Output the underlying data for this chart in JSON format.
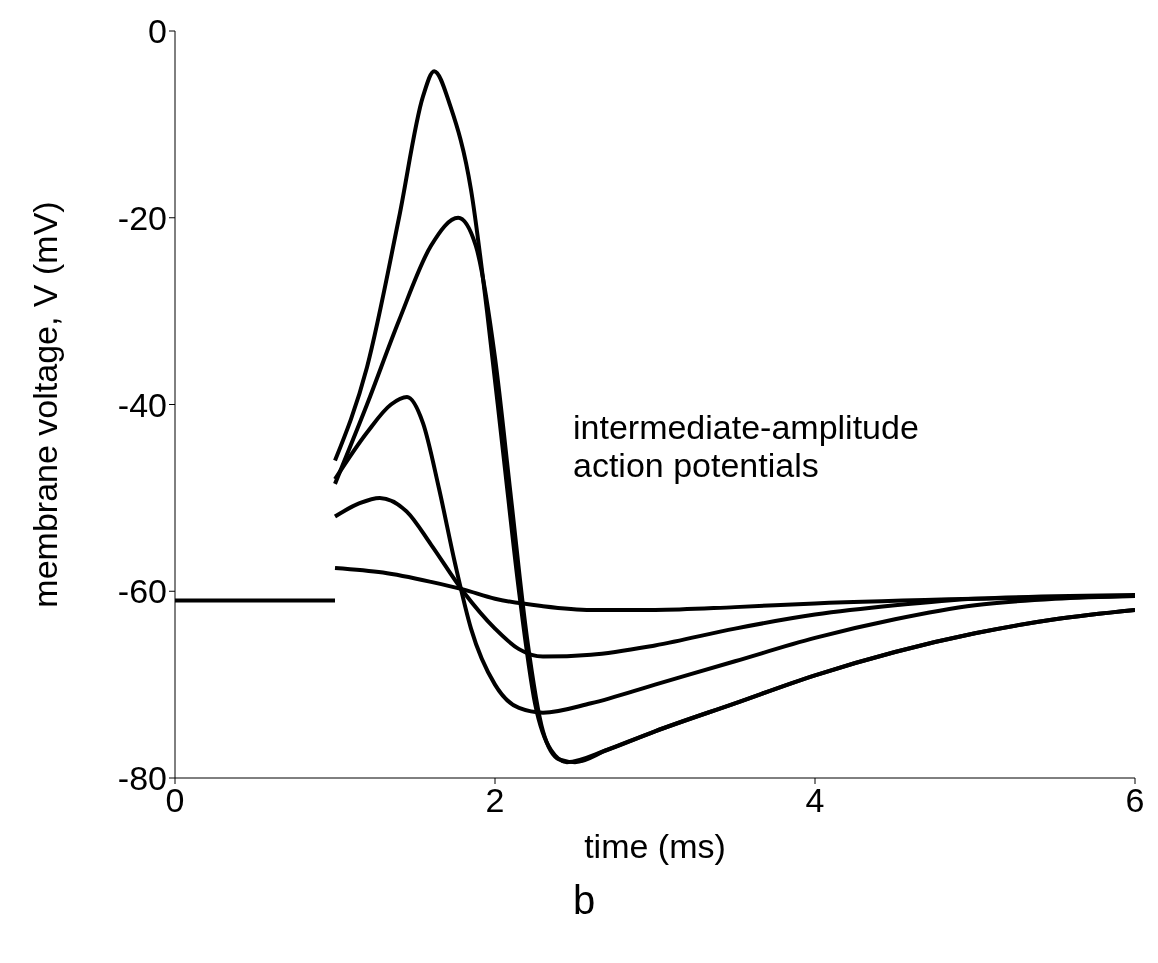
{
  "chart_data": {
    "type": "line",
    "xlabel": "time (ms)",
    "ylabel": "membrane voltage, V (mV)",
    "xlim": [
      0,
      6
    ],
    "ylim": [
      -80,
      0
    ],
    "xticks": [
      0,
      2,
      4,
      6
    ],
    "yticks": [
      0,
      -20,
      -40,
      -60,
      -80
    ],
    "marker": "none",
    "line_style": "solid",
    "series": [
      {
        "color": "#000000",
        "x": [
          0,
          1
        ],
        "values": [
          -61,
          -61
        ]
      },
      {
        "color": "#000000",
        "x": [
          1,
          1.2,
          1.4,
          1.55,
          1.62,
          1.72,
          1.85,
          1.95,
          2.05,
          2.15,
          2.25,
          2.35,
          2.45,
          2.7,
          3,
          3.5,
          4,
          4.5,
          5,
          5.5,
          6
        ],
        "values": [
          -46,
          -36,
          -20,
          -7,
          -4.3,
          -8,
          -17,
          -30,
          -45,
          -60,
          -72,
          -77,
          -78.3,
          -77,
          -75,
          -72,
          -69,
          -66.5,
          -64.5,
          -63,
          -62
        ]
      },
      {
        "color": "#000000",
        "x": [
          1,
          1.2,
          1.4,
          1.6,
          1.77,
          1.88,
          2,
          2.1,
          2.2,
          2.3,
          2.4,
          2.5,
          2.7,
          3,
          3.5,
          4,
          4.5,
          5,
          5.5,
          6
        ],
        "values": [
          -48.5,
          -40,
          -31,
          -23,
          -20,
          -23,
          -35,
          -50,
          -65,
          -75,
          -78,
          -78.3,
          -77,
          -75,
          -72,
          -69,
          -66.5,
          -64.5,
          -63,
          -62
        ]
      },
      {
        "color": "#000000",
        "x": [
          1,
          1.2,
          1.35,
          1.45,
          1.55,
          1.65,
          1.75,
          1.85,
          2,
          2.15,
          2.3,
          2.6,
          3,
          3.5,
          4,
          4.5,
          5,
          5.5,
          6
        ],
        "values": [
          -48,
          -43,
          -40,
          -39.2,
          -42,
          -49,
          -57,
          -64,
          -70,
          -72.5,
          -73,
          -72,
          -70,
          -67.5,
          -65,
          -63,
          -61.5,
          -60.8,
          -60.5
        ]
      },
      {
        "color": "#000000",
        "x": [
          1,
          1.15,
          1.28,
          1.45,
          1.6,
          1.8,
          2,
          2.15,
          2.3,
          2.6,
          3,
          3.5,
          4,
          4.5,
          5,
          6
        ],
        "values": [
          -52,
          -50.6,
          -50,
          -51.5,
          -55,
          -60,
          -64,
          -66.2,
          -67,
          -66.8,
          -65.8,
          -64,
          -62.5,
          -61.5,
          -60.8,
          -60.4
        ]
      },
      {
        "color": "#000000",
        "x": [
          1,
          1.3,
          1.6,
          1.8,
          2,
          2.3,
          2.6,
          3,
          3.5,
          4,
          5,
          6
        ],
        "values": [
          -57.5,
          -58,
          -59,
          -59.8,
          -60.8,
          -61.6,
          -62,
          -62,
          -61.7,
          -61.3,
          -60.8,
          -60.5
        ]
      }
    ],
    "annotations": [
      "intermediate-amplitude action potentials",
      "b"
    ]
  }
}
